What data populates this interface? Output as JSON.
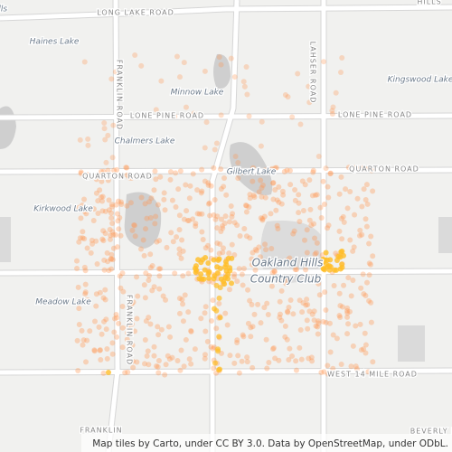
{
  "map": {
    "labels": [
      "ills",
      "LONG LAKE ROAD",
      "HILLS",
      "Haines Lake",
      "Minnow Lake",
      "Kingswood Lake",
      "LONE PINE ROAD",
      "LONE PINE ROAD",
      "FRANKLIN ROAD",
      "LAHSER ROAD",
      "Chalmers Lake",
      "Gilbert Lake",
      "QUARTON ROAD",
      "QUARTON ROAD",
      "Kirkwood Lake",
      "Oakland Hills",
      "Country Club",
      "Meadow Lake",
      "FRANKLIN ROAD",
      "WEST 14 MILE ROAD",
      "FRANKLIN",
      "BEVERLY H"
    ],
    "attribution": "Map tiles by Carto, under CC BY 3.0. Data by OpenStreetMap, under ODbL."
  }
}
